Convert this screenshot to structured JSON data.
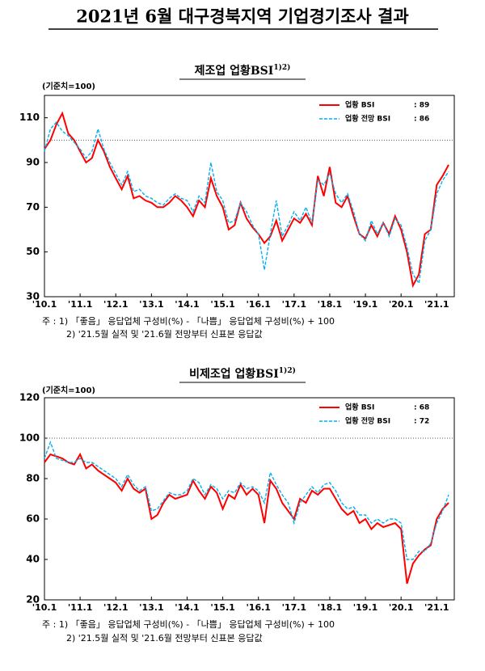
{
  "title": "2021년 6월 대구경북지역 기업경기조사 결과",
  "chart_data": [
    {
      "type": "line",
      "title": "제조업 업황BSI",
      "title_sup": "1)2)",
      "unit_label": "(기준치=100)",
      "reference_line": 100,
      "legend": "upper right",
      "categories": [
        "'10.1",
        null,
        null,
        null,
        null,
        null,
        "'11.1",
        null,
        null,
        null,
        null,
        null,
        "'12.1",
        null,
        null,
        null,
        null,
        null,
        "'13.1",
        null,
        null,
        null,
        null,
        null,
        "'14.1",
        null,
        null,
        null,
        null,
        null,
        "'15.1",
        null,
        null,
        null,
        null,
        null,
        "'16.1",
        null,
        null,
        null,
        null,
        null,
        "'17.1",
        null,
        null,
        null,
        null,
        null,
        "'18.1",
        null,
        null,
        null,
        null,
        null,
        "'19.1",
        null,
        null,
        null,
        null,
        null,
        "'20.1",
        null,
        null,
        null,
        null,
        null,
        "'21.1",
        null,
        null
      ],
      "series": [
        {
          "name": "업황 BSI",
          "legend_value": ": 89",
          "color": "#ff0000",
          "dashed": false,
          "values": [
            96,
            100,
            107,
            112,
            103,
            100,
            95,
            90,
            92,
            100,
            95,
            88,
            83,
            78,
            84,
            74,
            75,
            73,
            72,
            70,
            70,
            72,
            75,
            73,
            70,
            66,
            73,
            70,
            83,
            75,
            70,
            60,
            62,
            72,
            65,
            61,
            58,
            54,
            57,
            64,
            55,
            60,
            65,
            63,
            67,
            62,
            84,
            75,
            88,
            72,
            70,
            75,
            66,
            58,
            56,
            62,
            57,
            63,
            58,
            66,
            60,
            50,
            35,
            40,
            58,
            60,
            80,
            84,
            89
          ]
        },
        {
          "name": "업황 전망 BSI",
          "legend_value": ": 86",
          "color": "#00b0f0",
          "dashed": true,
          "values": [
            95,
            105,
            108,
            104,
            102,
            99,
            96,
            92,
            95,
            105,
            96,
            90,
            85,
            80,
            86,
            77,
            78,
            75,
            74,
            72,
            71,
            74,
            76,
            74,
            73,
            68,
            75,
            72,
            90,
            77,
            73,
            63,
            64,
            72,
            68,
            62,
            58,
            42,
            58,
            73,
            57,
            62,
            68,
            64,
            70,
            63,
            82,
            80,
            85,
            76,
            72,
            76,
            68,
            58,
            55,
            64,
            58,
            63,
            57,
            65,
            62,
            52,
            40,
            36,
            55,
            60,
            76,
            82,
            86
          ]
        }
      ],
      "ylim": [
        30,
        120
      ],
      "yticks": [
        30,
        50,
        70,
        90,
        110
      ],
      "notes": [
        "주 : 1) 「좋음」 응답업체 구성비(%) - 「나쁨」 응답업체 구성비(%) + 100",
        "2) '21.5월 실적 및 '21.6월 전망부터 신표본 응답값"
      ]
    },
    {
      "type": "line",
      "title": "비제조업 업황BSI",
      "title_sup": "1)2)",
      "unit_label": "(기준치=100)",
      "reference_line": 100,
      "legend": "upper right",
      "categories": [
        "'10.1",
        null,
        null,
        null,
        null,
        null,
        "'11.1",
        null,
        null,
        null,
        null,
        null,
        "'12.1",
        null,
        null,
        null,
        null,
        null,
        "'13.1",
        null,
        null,
        null,
        null,
        null,
        "'14.1",
        null,
        null,
        null,
        null,
        null,
        "'15.1",
        null,
        null,
        null,
        null,
        null,
        "'16.1",
        null,
        null,
        null,
        null,
        null,
        "'17.1",
        null,
        null,
        null,
        null,
        null,
        "'18.1",
        null,
        null,
        null,
        null,
        null,
        "'19.1",
        null,
        null,
        null,
        null,
        null,
        "'20.1",
        null,
        null,
        null,
        null,
        null,
        "'21.1",
        null,
        null
      ],
      "series": [
        {
          "name": "업황 BSI",
          "legend_value": ": 68",
          "color": "#ff0000",
          "dashed": false,
          "values": [
            88,
            92,
            91,
            90,
            88,
            87,
            92,
            85,
            87,
            84,
            82,
            80,
            78,
            74,
            80,
            75,
            73,
            75,
            60,
            62,
            68,
            72,
            70,
            71,
            72,
            79,
            74,
            70,
            76,
            73,
            65,
            72,
            70,
            77,
            72,
            75,
            72,
            58,
            79,
            75,
            68,
            64,
            60,
            70,
            68,
            74,
            72,
            75,
            75,
            70,
            65,
            62,
            64,
            58,
            60,
            55,
            58,
            56,
            57,
            58,
            55,
            28,
            38,
            42,
            45,
            47,
            60,
            65,
            68
          ]
        },
        {
          "name": "업황 전망 BSI",
          "legend_value": ": 72",
          "color": "#00b0f0",
          "dashed": true,
          "values": [
            90,
            98,
            90,
            89,
            88,
            88,
            90,
            88,
            88,
            86,
            84,
            82,
            80,
            76,
            82,
            77,
            74,
            76,
            64,
            65,
            69,
            73,
            72,
            72,
            74,
            80,
            78,
            72,
            77,
            75,
            70,
            74,
            73,
            78,
            75,
            76,
            74,
            68,
            83,
            77,
            72,
            68,
            58,
            68,
            72,
            76,
            73,
            77,
            78,
            74,
            68,
            65,
            66,
            62,
            62,
            58,
            60,
            58,
            60,
            60,
            58,
            40,
            40,
            44,
            44,
            48,
            58,
            64,
            72
          ]
        }
      ],
      "ylim": [
        20,
        120
      ],
      "yticks": [
        20,
        40,
        60,
        80,
        100,
        120
      ],
      "notes": [
        "주 : 1) 「좋음」 응답업체 구성비(%) - 「나쁨」 응답업체 구성비(%) + 100",
        "2) '21.5월 실적 및 '21.6월 전망부터 신표본 응답값"
      ]
    }
  ]
}
